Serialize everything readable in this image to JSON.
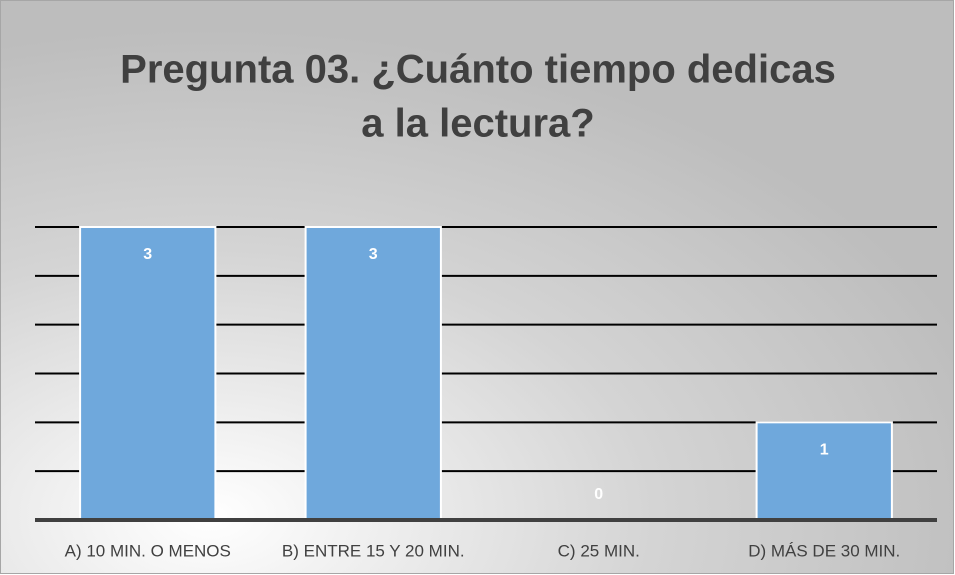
{
  "chart_data": {
    "type": "bar",
    "title": [
      "Pregunta 03. ¿Cuánto tiempo dedicas",
      "a la lectura?"
    ],
    "categories": [
      "A) 10 MIN. O MENOS",
      "B) ENTRE 15 Y 20 MIN.",
      "C) 25 MIN.",
      "D) MÁS DE 30 MIN."
    ],
    "values": [
      3,
      3,
      0,
      1
    ],
    "color": "#6fa8dc",
    "ylim": [
      0,
      3
    ],
    "yticks": [
      0,
      0.5,
      1,
      1.5,
      2,
      2.5,
      3
    ],
    "grid": true
  }
}
